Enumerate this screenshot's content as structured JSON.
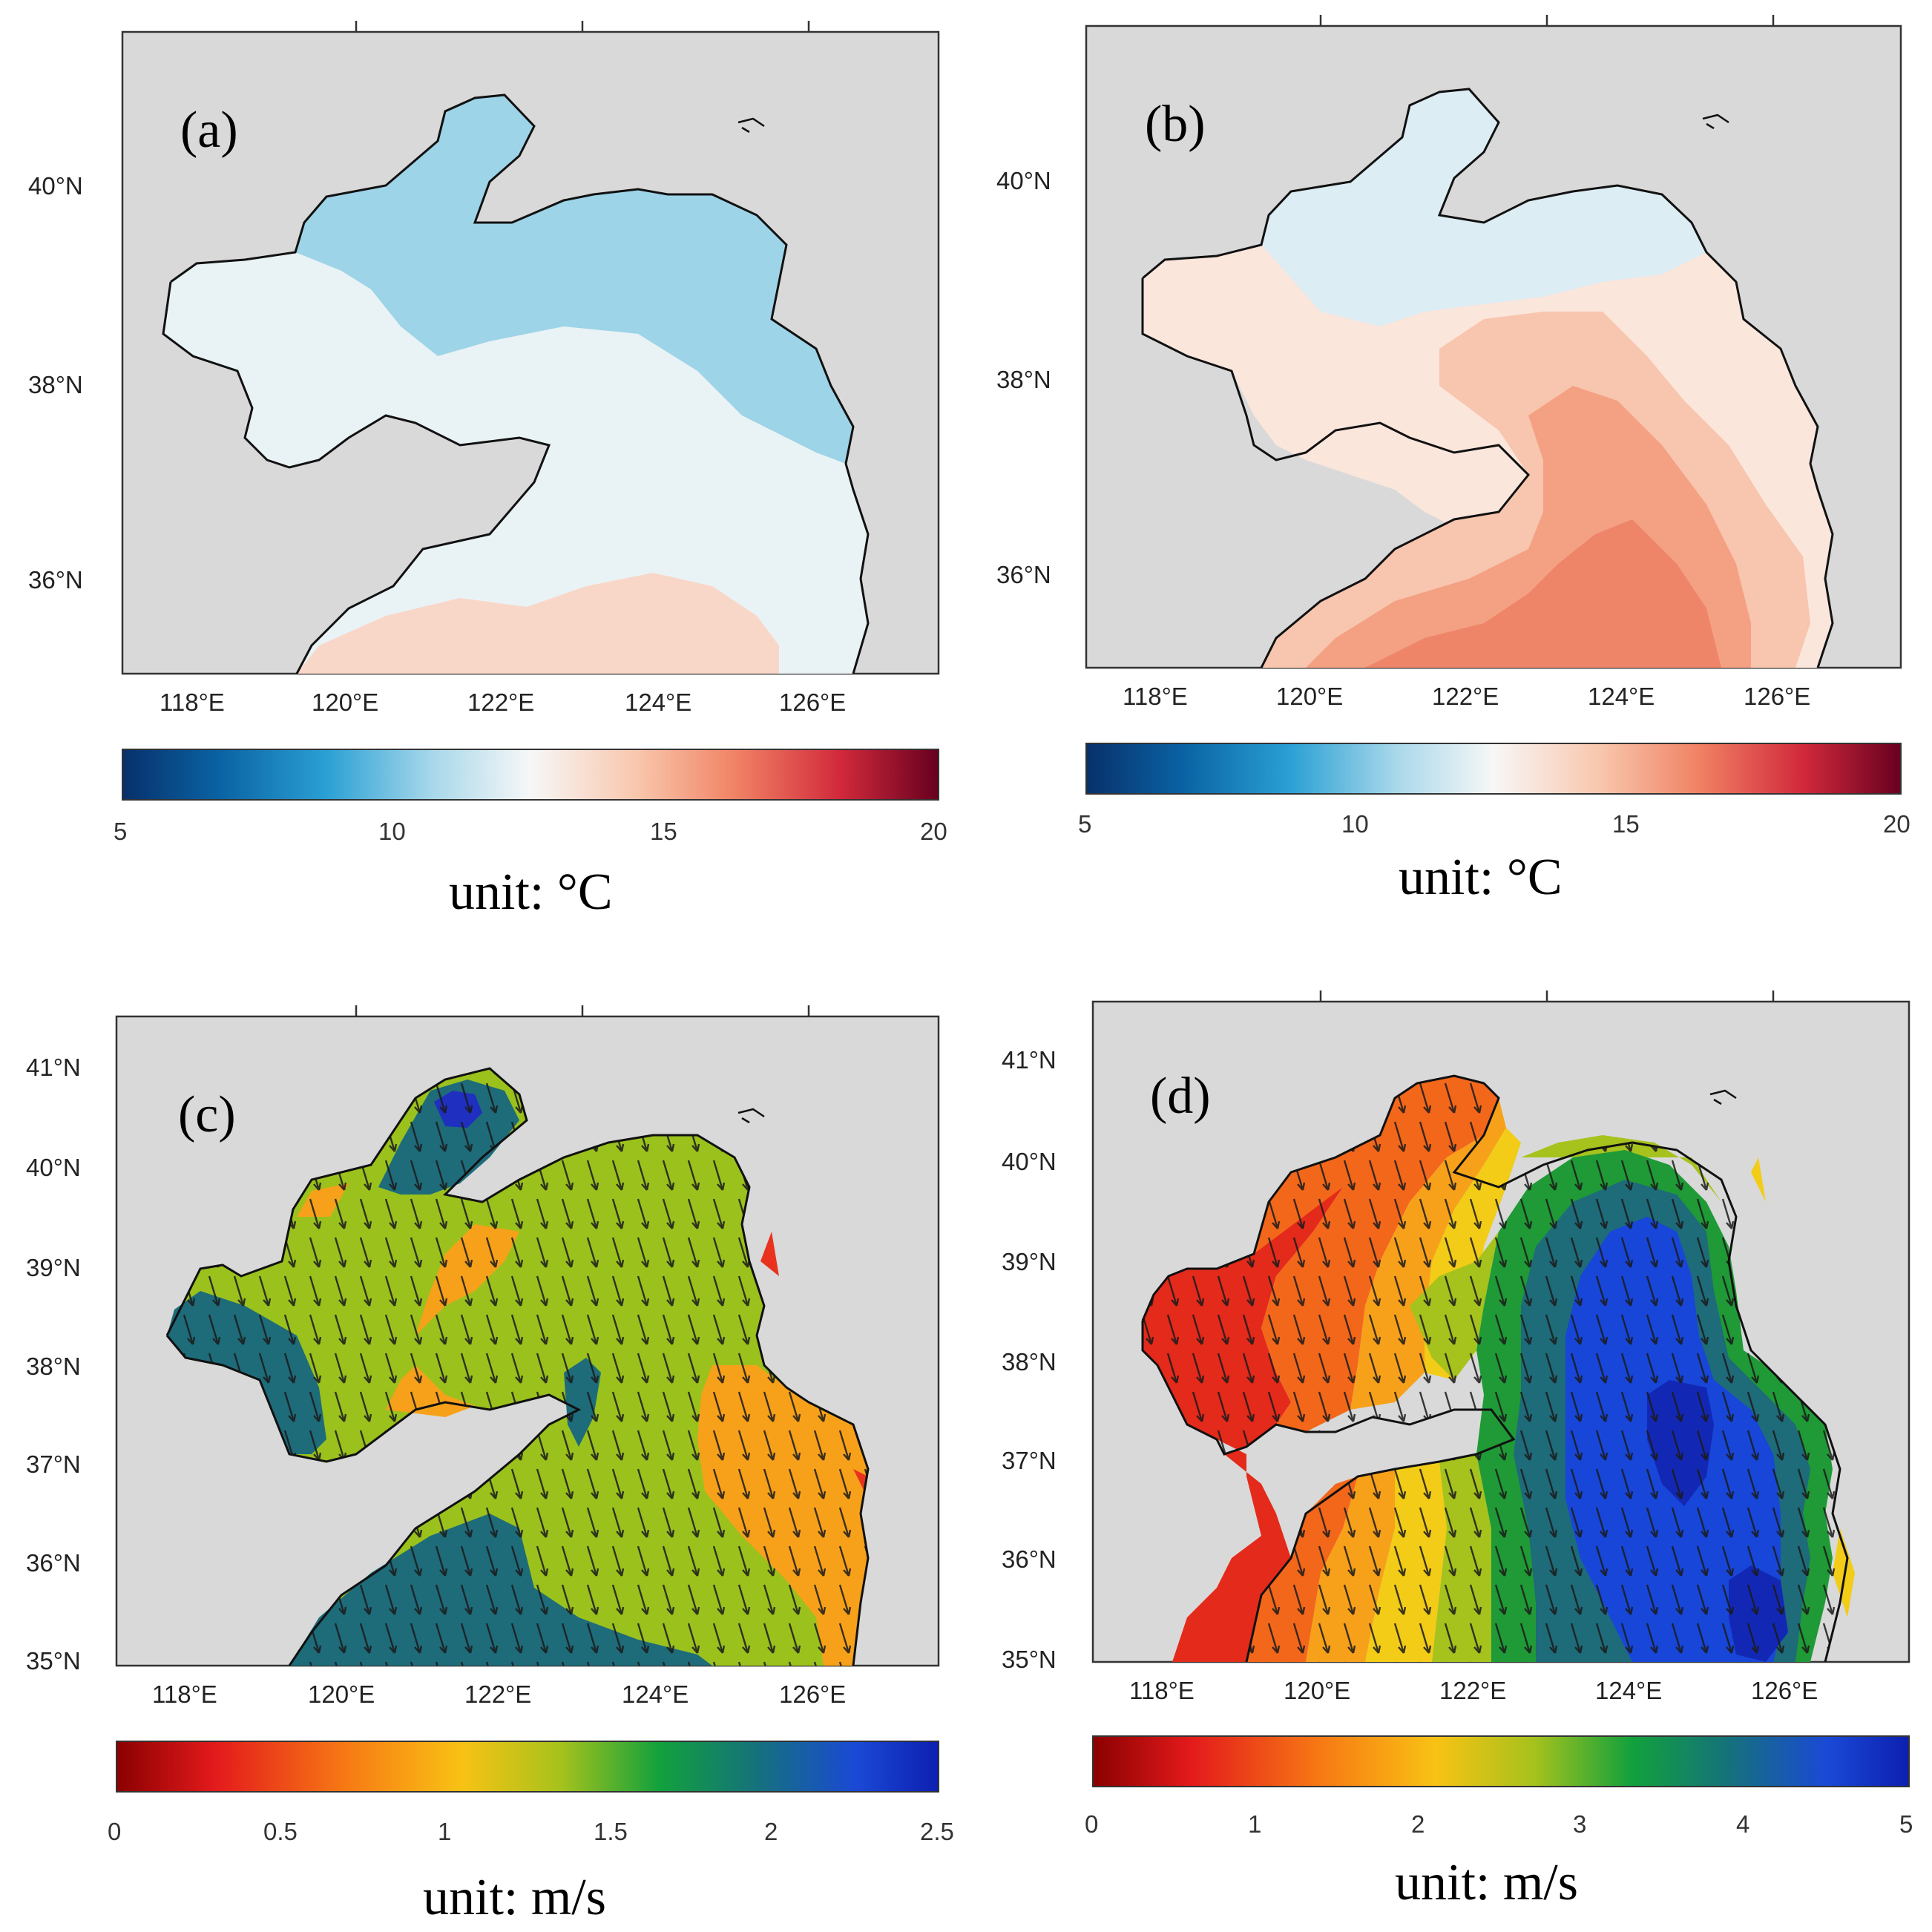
{
  "figure": {
    "panels": [
      {
        "id": "a",
        "label": "(a)",
        "lon_ticks": [
          "118°E",
          "120°E",
          "122°E",
          "124°E",
          "126°E"
        ],
        "lat_ticks": [
          "40°N",
          "38°N",
          "36°N"
        ],
        "colorbar": {
          "ticks": [
            "5",
            "10",
            "15",
            "20"
          ],
          "unit": "unit: °C",
          "cmap": "rdbu",
          "range": [
            5,
            20
          ]
        },
        "field_colors": [
          "#9dd4e8",
          "#e9f3f6",
          "#f9d7c8"
        ]
      },
      {
        "id": "b",
        "label": "(b)",
        "lon_ticks": [
          "118°E",
          "120°E",
          "122°E",
          "124°E",
          "126°E"
        ],
        "lat_ticks": [
          "40°N",
          "38°N",
          "36°N"
        ],
        "colorbar": {
          "ticks": [
            "5",
            "10",
            "15",
            "20"
          ],
          "unit": "unit: °C",
          "cmap": "rdbu",
          "range": [
            5,
            20
          ]
        },
        "field_colors": [
          "#ddedf4",
          "#fbe6dc",
          "#f8c5ae",
          "#f4a083",
          "#ee8468"
        ]
      },
      {
        "id": "c",
        "label": "(c)",
        "lon_ticks": [
          "118°E",
          "120°E",
          "122°E",
          "124°E",
          "126°E"
        ],
        "lat_ticks": [
          "41°N",
          "40°N",
          "39°N",
          "38°N",
          "37°N",
          "36°N",
          "35°N"
        ],
        "colorbar": {
          "ticks": [
            "0",
            "0.5",
            "1",
            "1.5",
            "2",
            "2.5"
          ],
          "unit": "unit: m/s",
          "cmap": "jet_r",
          "range": [
            0,
            2.5
          ]
        },
        "field_colors": [
          "#9bc11d",
          "#1e6b7a",
          "#f7a11a",
          "#1f2fbf",
          "#e8321e"
        ]
      },
      {
        "id": "d",
        "label": "(d)",
        "lon_ticks": [
          "118°E",
          "120°E",
          "122°E",
          "124°E",
          "126°E"
        ],
        "lat_ticks": [
          "41°N",
          "40°N",
          "39°N",
          "38°N",
          "37°N",
          "36°N",
          "35°N"
        ],
        "colorbar": {
          "ticks": [
            "0",
            "1",
            "2",
            "3",
            "4",
            "5"
          ],
          "unit": "unit: m/s",
          "cmap": "jet_r",
          "range": [
            0,
            5
          ]
        },
        "field_colors": [
          "#e42a1a",
          "#f3671b",
          "#f7a11a",
          "#f2cc17",
          "#a6c21c",
          "#1f9a36",
          "#1e6b7a",
          "#1746d9",
          "#1327b5"
        ]
      }
    ]
  },
  "colors": {
    "land": "#d9d9d9",
    "coast": "#111111",
    "frame": "#333333",
    "arrow": "#1a1a1a"
  }
}
